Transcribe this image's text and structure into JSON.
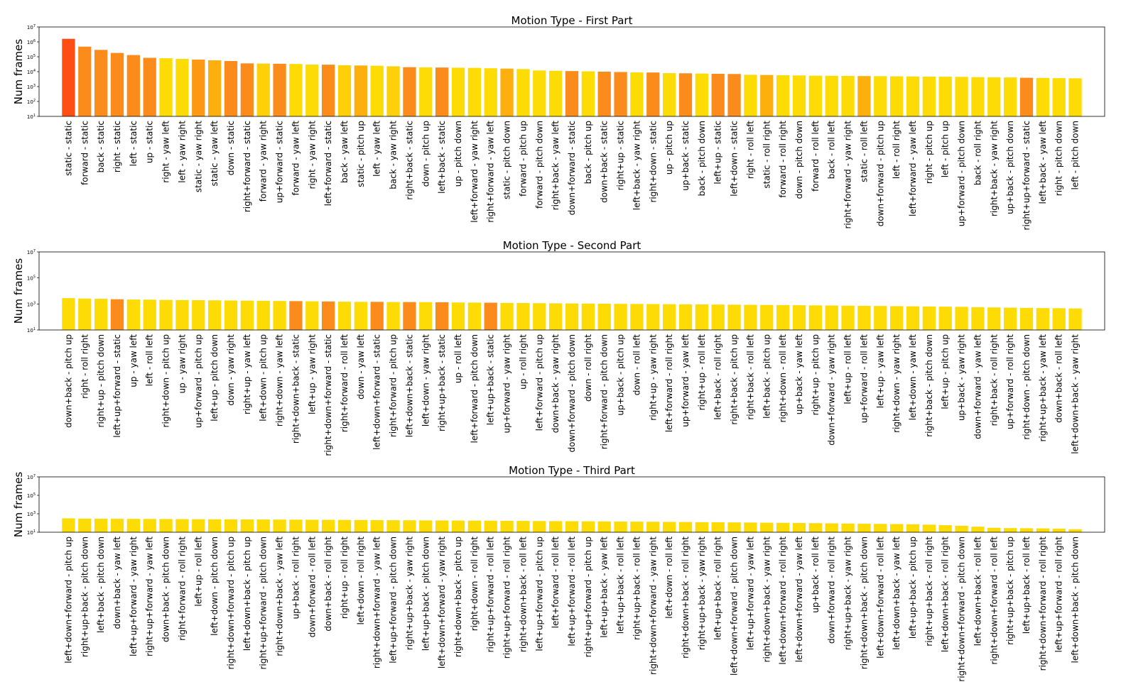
{
  "chart_data": [
    {
      "type": "bar",
      "title": "Motion Type - First Part",
      "ylabel": "Num frames",
      "xlabel": "",
      "yscale": "log",
      "ylim": [
        10,
        10000000
      ],
      "ytick_labels": [
        {
          "base": "10",
          "exp": "1"
        },
        {
          "base": "10",
          "exp": "2"
        },
        {
          "base": "10",
          "exp": "3"
        },
        {
          "base": "10",
          "exp": "4"
        },
        {
          "base": "10",
          "exp": "5"
        },
        {
          "base": "10",
          "exp": "6"
        },
        {
          "base": "10",
          "exp": "7"
        }
      ],
      "categories": [
        "static - static",
        "forward - static",
        "back - static",
        "right - static",
        "left - static",
        "up - static",
        "right - yaw left",
        "left - yaw right",
        "static - yaw right",
        "static - yaw left",
        "down - static",
        "right+forward - static",
        "forward - yaw right",
        "up+forward - static",
        "forward - yaw left",
        "right - yaw right",
        "left+forward - static",
        "back - yaw left",
        "static - pitch up",
        "left - yaw left",
        "back - yaw right",
        "right+back - static",
        "down - pitch up",
        "left+back - static",
        "up - pitch down",
        "left+forward - yaw right",
        "right+forward - yaw left",
        "static - pitch down",
        "forward - pitch up",
        "forward - pitch down",
        "right+back - yaw left",
        "down+forward - static",
        "back - pitch up",
        "down+back - static",
        "right+up - static",
        "left+back - yaw right",
        "right+down - static",
        "up - pitch up",
        "up+back - static",
        "back - pitch down",
        "left+up - static",
        "left+down - static",
        "right - roll left",
        "static - roll right",
        "forward - roll right",
        "down - pitch down",
        "forward - roll left",
        "back - roll left",
        "right+forward - yaw right",
        "static - roll left",
        "down+forward - pitch up",
        "left - roll right",
        "left+forward - yaw left",
        "right - pitch up",
        "left - pitch up",
        "up+forward - pitch down",
        "back - roll right",
        "right+back - yaw right",
        "up+back - pitch down",
        "right+up+forward - static",
        "left+back - yaw left",
        "right - pitch down",
        "left - pitch down"
      ],
      "values": [
        1600000,
        480000,
        290000,
        180000,
        130000,
        85000,
        80000,
        72000,
        65000,
        58000,
        52000,
        36000,
        35000,
        34000,
        33000,
        30000,
        29500,
        27000,
        26000,
        25000,
        23000,
        20000,
        19500,
        19000,
        18500,
        18000,
        17000,
        16000,
        15000,
        12000,
        11500,
        11000,
        10500,
        10000,
        9500,
        9000,
        8800,
        8000,
        7800,
        7500,
        7200,
        7000,
        6200,
        6000,
        5800,
        5600,
        5400,
        5300,
        5200,
        5100,
        5000,
        4900,
        4800,
        4700,
        4600,
        4500,
        4300,
        4200,
        4100,
        3900,
        3800,
        3700,
        3600
      ],
      "bar_colors": [
        "#fc4d14",
        "#fb8c1c",
        "#fb8c1c",
        "#fb8c1c",
        "#fb8c1c",
        "#fb8c1c",
        "#fddc06",
        "#fddc06",
        "#fd9814",
        "#fdb00d",
        "#fb8c1c",
        "#fb8c1c",
        "#fdd00a",
        "#fb8c1c",
        "#fddc06",
        "#fddc06",
        "#fb8c1c",
        "#fdd00a",
        "#fdb00d",
        "#fddc06",
        "#fdd00a",
        "#fb8c1c",
        "#fddc06",
        "#fb8c1c",
        "#fddc06",
        "#fddc06",
        "#fddc06",
        "#fdb00d",
        "#fddc06",
        "#fddc06",
        "#fddc06",
        "#fb8c1c",
        "#fddc06",
        "#fb8c1c",
        "#fb8c1c",
        "#fddc06",
        "#fb8c1c",
        "#fddc06",
        "#fb8c1c",
        "#fddc06",
        "#fb8c1c",
        "#fb8c1c",
        "#fddc06",
        "#fdb00d",
        "#fddc06",
        "#fddc06",
        "#fddc06",
        "#fddc06",
        "#fddc06",
        "#fdb00d",
        "#fddc06",
        "#fddc06",
        "#fddc06",
        "#fddc06",
        "#fddc06",
        "#fddc06",
        "#fddc06",
        "#fddc06",
        "#fddc06",
        "#fb8c1c",
        "#fddc06",
        "#fddc06",
        "#fddc06"
      ]
    },
    {
      "type": "bar",
      "title": "Motion Type - Second Part",
      "ylabel": "Num frames",
      "xlabel": "",
      "yscale": "log",
      "ylim": [
        10,
        10000000
      ],
      "ytick_labels": [
        {
          "base": "10",
          "exp": "1"
        },
        {
          "base": "10",
          "exp": "3"
        },
        {
          "base": "10",
          "exp": "5"
        },
        {
          "base": "10",
          "exp": "7"
        }
      ],
      "categories": [
        "down+back - pitch up",
        "right - roll right",
        "right+up - pitch down",
        "left+up+forward - static",
        "up - yaw left",
        "left - roll left",
        "right+down - pitch up",
        "up - yaw right",
        "up+forward - pitch up",
        "left+up - pitch down",
        "down - yaw right",
        "right+up - yaw left",
        "left+down - pitch up",
        "right+down - yaw left",
        "right+down+back - static",
        "left+up - yaw right",
        "right+down+forward - static",
        "right+forward - roll left",
        "down - yaw left",
        "left+down+forward - static",
        "right+forward - pitch up",
        "left+down+back - static",
        "left+down - yaw right",
        "right+up+back - static",
        "up - roll left",
        "left+forward - pitch down",
        "left+up+back - static",
        "up+forward - yaw right",
        "up - roll right",
        "left+forward - pitch up",
        "down+back - yaw right",
        "down+forward - pitch down",
        "down - roll right",
        "right+forward - pitch down",
        "up+back - pitch up",
        "down - roll left",
        "right+up - yaw right",
        "left+forward - roll right",
        "up+forward - yaw left",
        "right+up - roll left",
        "left+back - roll right",
        "right+back - pitch up",
        "right+back - roll left",
        "left+back - pitch up",
        "right+down - roll left",
        "up+back - yaw left",
        "right+up - pitch up",
        "down+forward - yaw right",
        "left+up - roll left",
        "up+forward - roll left",
        "left+up - yaw left",
        "right+down - yaw right",
        "left+down - yaw left",
        "right+back - pitch down",
        "left+up - pitch up",
        "up+back - yaw right",
        "down+forward - yaw left",
        "right+back - roll right",
        "up+forward - roll right",
        "right+down - pitch down",
        "right+up+back - yaw left",
        "down+back - roll left",
        "left+down+back - yaw right"
      ],
      "values": [
        2800,
        2600,
        2500,
        2300,
        2200,
        2150,
        2050,
        2000,
        1950,
        1900,
        1850,
        1800,
        1750,
        1700,
        1650,
        1600,
        1550,
        1500,
        1450,
        1450,
        1400,
        1400,
        1380,
        1350,
        1300,
        1280,
        1250,
        1200,
        1180,
        1150,
        1120,
        1100,
        1080,
        1050,
        1020,
        1000,
        980,
        960,
        940,
        920,
        900,
        880,
        860,
        840,
        820,
        800,
        780,
        760,
        740,
        720,
        700,
        680,
        660,
        640,
        620,
        600,
        560,
        540,
        520,
        500,
        480,
        470,
        450
      ],
      "bar_colors": [
        "#fddc06",
        "#fddc06",
        "#fddc06",
        "#fb8c1c",
        "#fddc06",
        "#fddc06",
        "#fddc06",
        "#fddc06",
        "#fddc06",
        "#fddc06",
        "#fddc06",
        "#fddc06",
        "#fddc06",
        "#fddc06",
        "#fb8c1c",
        "#fddc06",
        "#fb8c1c",
        "#fddc06",
        "#fddc06",
        "#fb8c1c",
        "#fddc06",
        "#fb8c1c",
        "#fddc06",
        "#fb8c1c",
        "#fddc06",
        "#fddc06",
        "#fb8c1c",
        "#fddc06",
        "#fddc06",
        "#fddc06",
        "#fddc06",
        "#fddc06",
        "#fddc06",
        "#fddc06",
        "#fddc06",
        "#fddc06",
        "#fddc06",
        "#fddc06",
        "#fddc06",
        "#fddc06",
        "#fddc06",
        "#fddc06",
        "#fddc06",
        "#fddc06",
        "#fddc06",
        "#fddc06",
        "#fddc06",
        "#fddc06",
        "#fddc06",
        "#fddc06",
        "#fddc06",
        "#fddc06",
        "#fddc06",
        "#fddc06",
        "#fddc06",
        "#fddc06",
        "#fddc06",
        "#fddc06",
        "#fddc06",
        "#fddc06",
        "#fddc06",
        "#fddc06",
        "#fddc06"
      ]
    },
    {
      "type": "bar",
      "title": "Motion Type - Third Part",
      "ylabel": "Num frames",
      "xlabel": "",
      "yscale": "log",
      "ylim": [
        10,
        10000000
      ],
      "ytick_labels": [
        {
          "base": "10",
          "exp": "1"
        },
        {
          "base": "10",
          "exp": "3"
        },
        {
          "base": "10",
          "exp": "5"
        },
        {
          "base": "10",
          "exp": "7"
        }
      ],
      "categories": [
        "left+down+forward - pitch up",
        "right+up+back - pitch down",
        "left+back - pitch down",
        "down+back - yaw left",
        "left+up+forward - yaw right",
        "right+up+forward - yaw left",
        "down+back - pitch down",
        "right+forward - roll right",
        "left+up - roll left",
        "left+down - pitch down",
        "right+down+forward - pitch up",
        "left+down+back - pitch up",
        "right+up+forward - pitch down",
        "right+down+back - yaw left",
        "up+back - roll right",
        "down+forward - roll left",
        "down+back - roll right",
        "right+up - roll right",
        "left+down - roll right",
        "right+down+forward - yaw left",
        "left+up+forward - pitch down",
        "right+up+back - yaw right",
        "left+up+back - pitch down",
        "left+down+forward - yaw right",
        "right+down+back - pitch up",
        "right+down - roll right",
        "right+up+forward - roll left",
        "right+up+forward - roll right",
        "right+down+back - roll left",
        "left+up+forward - pitch up",
        "left+forward - roll left",
        "left+up+forward - roll left",
        "right+up+forward - pitch up",
        "left+up+back - yaw left",
        "left+up+back - roll left",
        "right+up+back - roll left",
        "right+down+forward - yaw right",
        "left+down - roll left",
        "right+down+back - roll right",
        "right+up+back - yaw right",
        "left+up+back - roll right",
        "left+down+forward - pitch down",
        "left+up+forward - yaw left",
        "right+down+back - yaw right",
        "left+down+forward - roll right",
        "left+down+forward - yaw left",
        "up+back - roll left",
        "down+forward - roll right",
        "right+up+back - yaw right",
        "right+down+back - pitch down",
        "left+down+forward - roll left",
        "left+down+back - yaw left",
        "left+up+back - pitch up",
        "right+up+back - roll right",
        "left+down+back - roll right",
        "right+down+forward - pitch down",
        "left+down+back - roll left",
        "right+down+forward - roll left",
        "right+up+back - pitch up",
        "left+up+back - roll left",
        "right+down+forward - roll right",
        "left+up+forward - roll right",
        "left+down+back - pitch down"
      ],
      "values": [
        320,
        300,
        290,
        285,
        280,
        275,
        270,
        265,
        260,
        255,
        250,
        245,
        240,
        235,
        230,
        225,
        220,
        215,
        210,
        205,
        200,
        196,
        192,
        188,
        184,
        180,
        176,
        172,
        168,
        164,
        160,
        156,
        152,
        148,
        144,
        140,
        136,
        132,
        128,
        124,
        120,
        116,
        112,
        108,
        104,
        100,
        96,
        92,
        88,
        84,
        80,
        76,
        72,
        66,
        58,
        50,
        40,
        30,
        28,
        27,
        26,
        24,
        21
      ],
      "bar_colors": [
        "#fddc06",
        "#fddc06",
        "#fddc06",
        "#fddc06",
        "#fddc06",
        "#fddc06",
        "#fddc06",
        "#fddc06",
        "#fddc06",
        "#fddc06",
        "#fddc06",
        "#fddc06",
        "#fddc06",
        "#fddc06",
        "#fddc06",
        "#fddc06",
        "#fddc06",
        "#fddc06",
        "#fddc06",
        "#fddc06",
        "#fddc06",
        "#fddc06",
        "#fddc06",
        "#fddc06",
        "#fddc06",
        "#fddc06",
        "#fddc06",
        "#fddc06",
        "#fddc06",
        "#fddc06",
        "#fddc06",
        "#fddc06",
        "#fddc06",
        "#fddc06",
        "#fddc06",
        "#fddc06",
        "#fddc06",
        "#fddc06",
        "#fddc06",
        "#fddc06",
        "#fddc06",
        "#fddc06",
        "#fddc06",
        "#fddc06",
        "#fddc06",
        "#fddc06",
        "#fddc06",
        "#fddc06",
        "#fddc06",
        "#fddc06",
        "#fddc06",
        "#fddc06",
        "#fddc06",
        "#fddc06",
        "#fddc06",
        "#fddc06",
        "#fddc06",
        "#fddc06",
        "#fddc06",
        "#fddc06",
        "#fddc06",
        "#fddc06",
        "#fddc06"
      ]
    }
  ]
}
